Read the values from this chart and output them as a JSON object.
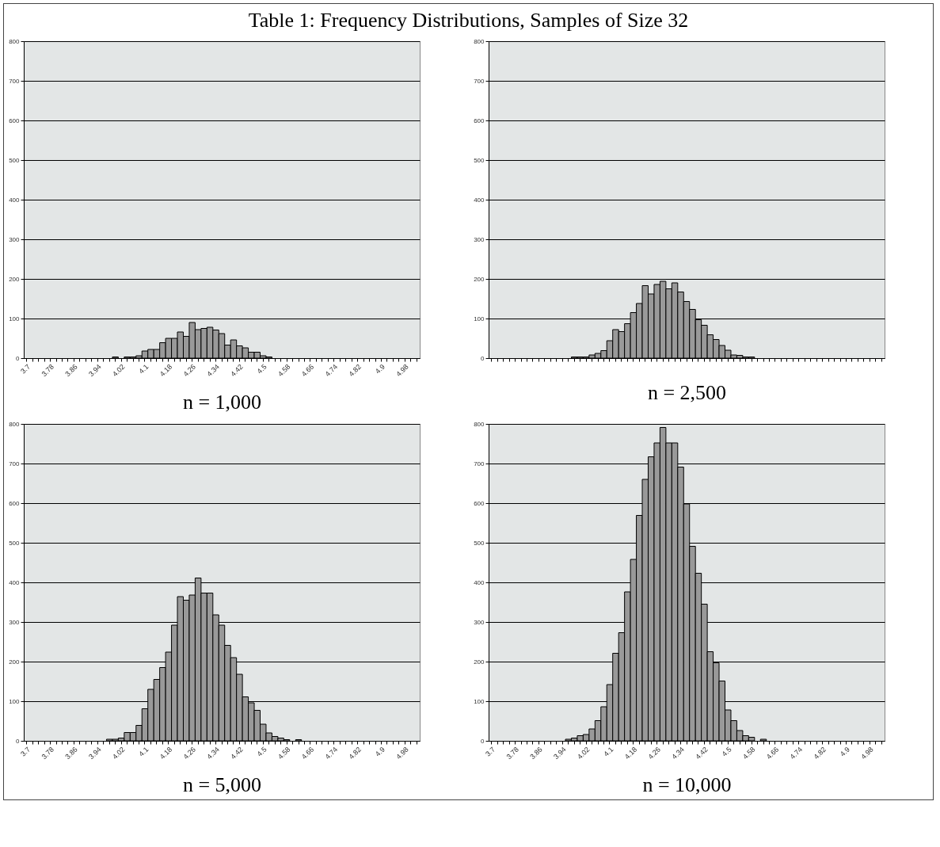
{
  "chart_data": [
    {
      "type": "bar",
      "title": "Table 1: Frequency Distributions, Samples of Size 32",
      "xlabel": "n = 1,000",
      "color": "#999999",
      "grid": "y",
      "ylim": [
        0,
        800
      ],
      "yticks": [
        0,
        100,
        200,
        300,
        400,
        500,
        600,
        700,
        800
      ],
      "categories": [
        "3.7",
        null,
        null,
        null,
        "3.78",
        null,
        null,
        null,
        "3.86",
        null,
        null,
        null,
        "3.94",
        null,
        null,
        null,
        "4.02",
        null,
        null,
        null,
        "4.1",
        null,
        null,
        null,
        "4.18",
        null,
        null,
        null,
        "4.26",
        null,
        null,
        null,
        "4.34",
        null,
        null,
        null,
        "4.42",
        null,
        null,
        null,
        "4.5",
        null,
        null,
        null,
        "4.58",
        null,
        null,
        null,
        "4.66",
        null,
        null,
        null,
        "4.74",
        null,
        null,
        null,
        "4.82",
        null,
        null,
        null,
        "4.9",
        null,
        null,
        null,
        "4.98",
        null,
        null
      ],
      "values": [
        0,
        0,
        0,
        0,
        0,
        0,
        0,
        0,
        0,
        0,
        0,
        0,
        0,
        0,
        0,
        3,
        0,
        3,
        3,
        6,
        18,
        22,
        22,
        39,
        50,
        50,
        66,
        55,
        90,
        72,
        75,
        78,
        71,
        62,
        33,
        46,
        31,
        26,
        15,
        15,
        6,
        3,
        0,
        0,
        0,
        0,
        0,
        0,
        0,
        0,
        0,
        0,
        0,
        0,
        0,
        0,
        0,
        0,
        0,
        0,
        0,
        0,
        0,
        0,
        0,
        0,
        0
      ]
    },
    {
      "type": "bar",
      "xlabel": "n = 2,500",
      "color": "#999999",
      "grid": "y",
      "ylim": [
        0,
        800
      ],
      "yticks": [
        0,
        100,
        200,
        300,
        400,
        500,
        600,
        700,
        800
      ],
      "categories": [
        null,
        null,
        null,
        null,
        null,
        null,
        null,
        null,
        null,
        null,
        null,
        null,
        null,
        null,
        null,
        null,
        null,
        null,
        null,
        null,
        null,
        null,
        null,
        null,
        null,
        null,
        null,
        null,
        null,
        null,
        null,
        null,
        null,
        null,
        null,
        null,
        null,
        null,
        null,
        null,
        null,
        null,
        null,
        null,
        null,
        null,
        null,
        null,
        null,
        null,
        null,
        null,
        null,
        null,
        null,
        null,
        null,
        null,
        null,
        null,
        null,
        null,
        null,
        null,
        null,
        null,
        null
      ],
      "values": [
        0,
        0,
        0,
        0,
        0,
        0,
        0,
        0,
        0,
        0,
        0,
        0,
        0,
        0,
        3,
        3,
        3,
        8,
        12,
        19,
        44,
        72,
        67,
        87,
        115,
        138,
        183,
        162,
        186,
        194,
        175,
        190,
        167,
        143,
        123,
        97,
        83,
        59,
        47,
        32,
        20,
        8,
        7,
        3,
        3,
        0,
        0,
        0,
        0,
        0,
        0,
        0,
        0,
        0,
        0,
        0,
        0,
        0,
        0,
        0,
        0,
        0,
        0,
        0,
        0,
        0,
        0
      ]
    },
    {
      "type": "bar",
      "xlabel": "n = 5,000",
      "color": "#999999",
      "grid": "y",
      "ylim": [
        0,
        800
      ],
      "yticks": [
        0,
        100,
        200,
        300,
        400,
        500,
        600,
        700,
        800
      ],
      "categories": [
        "3.7",
        null,
        null,
        null,
        "3.78",
        null,
        null,
        null,
        "3.86",
        null,
        null,
        null,
        "3.94",
        null,
        null,
        null,
        "4.02",
        null,
        null,
        null,
        "4.1",
        null,
        null,
        null,
        "4.18",
        null,
        null,
        null,
        "4.26",
        null,
        null,
        null,
        "4.34",
        null,
        null,
        null,
        "4.42",
        null,
        null,
        null,
        "4.5",
        null,
        null,
        null,
        "4.58",
        null,
        null,
        null,
        "4.66",
        null,
        null,
        null,
        "4.74",
        null,
        null,
        null,
        "4.82",
        null,
        null,
        null,
        "4.9",
        null,
        null,
        null,
        "4.98",
        null,
        null
      ],
      "values": [
        0,
        0,
        0,
        0,
        0,
        0,
        0,
        0,
        0,
        0,
        0,
        0,
        0,
        0,
        4,
        4,
        7,
        21,
        21,
        39,
        81,
        130,
        155,
        185,
        224,
        292,
        364,
        355,
        368,
        411,
        373,
        373,
        318,
        292,
        241,
        210,
        168,
        111,
        96,
        77,
        42,
        20,
        11,
        7,
        3,
        0,
        3,
        0,
        0,
        0,
        0,
        0,
        0,
        0,
        0,
        0,
        0,
        0,
        0,
        0,
        0,
        0,
        0,
        0,
        0,
        0,
        0
      ]
    },
    {
      "type": "bar",
      "xlabel": "n = 10,000",
      "color": "#999999",
      "grid": "y",
      "ylim": [
        0,
        800
      ],
      "yticks": [
        0,
        100,
        200,
        300,
        400,
        500,
        600,
        700,
        800
      ],
      "categories": [
        "3.7",
        null,
        null,
        null,
        "3.78",
        null,
        null,
        null,
        "3.86",
        null,
        null,
        null,
        "3.94",
        null,
        null,
        null,
        "4.02",
        null,
        null,
        null,
        "4.1",
        null,
        null,
        null,
        "4.18",
        null,
        null,
        null,
        "4.26",
        null,
        null,
        null,
        "4.34",
        null,
        null,
        null,
        "4.42",
        null,
        null,
        null,
        "4.5",
        null,
        null,
        null,
        "4.58",
        null,
        null,
        null,
        "4.66",
        null,
        null,
        null,
        "4.74",
        null,
        null,
        null,
        "4.82",
        null,
        null,
        null,
        "4.9",
        null,
        null,
        null,
        "4.98",
        null,
        null
      ],
      "values": [
        0,
        0,
        0,
        0,
        0,
        0,
        0,
        0,
        0,
        0,
        0,
        0,
        0,
        4,
        7,
        13,
        16,
        30,
        51,
        86,
        142,
        221,
        273,
        376,
        458,
        569,
        660,
        717,
        752,
        791,
        752,
        752,
        691,
        598,
        491,
        423,
        345,
        225,
        197,
        151,
        78,
        51,
        26,
        13,
        9,
        0,
        4,
        0,
        0,
        0,
        0,
        0,
        0,
        0,
        0,
        0,
        0,
        0,
        0,
        0,
        0,
        0,
        0,
        0,
        0,
        0,
        0
      ]
    }
  ]
}
